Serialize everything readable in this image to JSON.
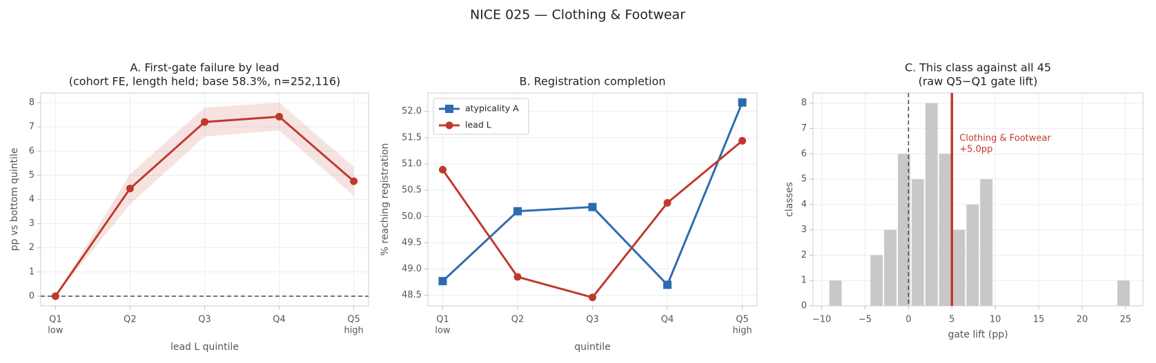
{
  "title": "NICE 025 — Clothing & Footwear",
  "chart_data": [
    {
      "type": "line",
      "title": [
        "A. First-gate failure by lead",
        "(cohort FE, length held; base 58.3%, n=252,116)"
      ],
      "categories": [
        "Q1",
        "Q2",
        "Q3",
        "Q4",
        "Q5"
      ],
      "category_sublabels": [
        "low",
        null,
        null,
        null,
        "high"
      ],
      "values": [
        0,
        4.45,
        7.2,
        7.42,
        4.75
      ],
      "band": {
        "lower": [
          0,
          3.8,
          6.6,
          6.85,
          4.15
        ],
        "upper": [
          0,
          5.05,
          7.8,
          8.0,
          5.35
        ]
      },
      "color": "#c0392b",
      "ylim": [
        -0.4,
        8.4
      ],
      "yticks": [
        0,
        1,
        2,
        3,
        4,
        5,
        6,
        7,
        8
      ],
      "hline": 0,
      "xlabel": "lead L quintile",
      "ylabel": "pp vs bottom quintile",
      "grid": true
    },
    {
      "type": "line",
      "title": [
        "B. Registration completion"
      ],
      "categories": [
        "Q1",
        "Q2",
        "Q3",
        "Q4",
        "Q5"
      ],
      "category_sublabels": [
        "low",
        null,
        null,
        null,
        "high"
      ],
      "series": [
        {
          "name": "atypicality A",
          "color": "#2c6bb0",
          "marker": "square",
          "values": [
            48.77,
            50.1,
            50.18,
            48.7,
            52.17
          ]
        },
        {
          "name": "lead L",
          "color": "#c0392b",
          "marker": "circle",
          "values": [
            50.89,
            48.85,
            48.46,
            50.26,
            51.44
          ]
        }
      ],
      "ylim": [
        48.3,
        52.35
      ],
      "yticks": [
        48.5,
        {
          "value": 49,
          "label": "49.0"
        },
        49.5,
        {
          "value": 50,
          "label": "50.0"
        },
        50.5,
        {
          "value": 51,
          "label": "51.0"
        },
        51.5,
        {
          "value": 52,
          "label": "52.0"
        }
      ],
      "legend": "upper left",
      "xlabel": "quintile",
      "ylabel": "% reaching registration",
      "grid": true
    },
    {
      "type": "histogram",
      "title": [
        "C. This class against all 45",
        "(raw Q5−Q1 gate lift)"
      ],
      "bins": [
        -9.2,
        -7.62,
        -6.04,
        -4.46,
        -2.88,
        -1.3,
        0.28,
        1.86,
        3.44,
        5.02,
        6.6,
        8.18,
        9.76,
        11.34,
        12.92,
        14.5,
        16.08,
        17.66,
        19.24,
        20.82,
        22.4,
        23.98,
        25.56
      ],
      "values": [
        1,
        0,
        0,
        2,
        3,
        6,
        5,
        8,
        6,
        3,
        4,
        5,
        0,
        0,
        0,
        0,
        0,
        0,
        0,
        0,
        0,
        1
      ],
      "color": "#c8c8c8",
      "xlim": [
        -11,
        27
      ],
      "xticks": [
        {
          "value": -10,
          "label": "−10"
        },
        {
          "value": -5,
          "label": "−5"
        },
        0,
        5,
        10,
        15,
        20,
        25
      ],
      "ylim": [
        0,
        8.4
      ],
      "yticks": [
        0,
        1,
        2,
        3,
        4,
        5,
        6,
        7,
        8
      ],
      "vline": 0,
      "highlight": {
        "value": 5.0,
        "color": "#c0392b"
      },
      "annotation": [
        "Clothing & Footwear",
        "+5.0pp"
      ],
      "xlabel": "gate lift (pp)",
      "ylabel": "classes",
      "grid": true
    }
  ]
}
